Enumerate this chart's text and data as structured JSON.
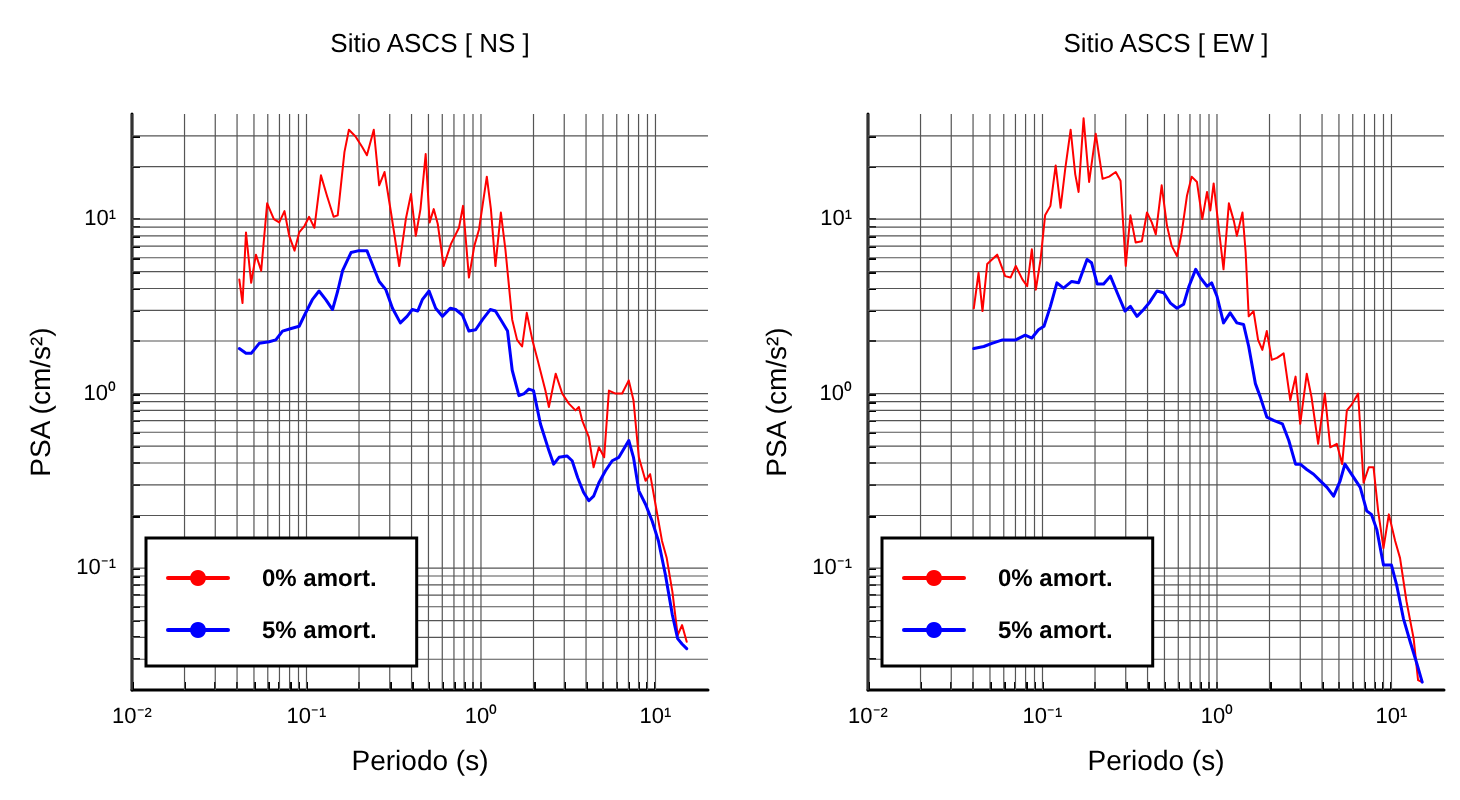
{
  "chart_data": [
    {
      "type": "line",
      "title": "Sitio ASCS [ NS ]",
      "xlabel": "Periodo (s)",
      "ylabel": "PSA (cm/s²)",
      "log": "xy",
      "grid": true,
      "legend": "bottom left",
      "xlim": [
        0.01,
        20
      ],
      "ylim": [
        0.02,
        40
      ],
      "xticks": [
        {
          "value": 0.01,
          "label": "10⁻²"
        },
        {
          "value": 0.02,
          "label": null
        },
        {
          "value": 0.03,
          "label": null
        },
        {
          "value": 0.04,
          "label": null
        },
        {
          "value": 0.05,
          "label": null
        },
        {
          "value": 0.06,
          "label": null
        },
        {
          "value": 0.07,
          "label": null
        },
        {
          "value": 0.08,
          "label": null
        },
        {
          "value": 0.09,
          "label": null
        },
        {
          "value": 0.1,
          "label": "10⁻¹"
        },
        {
          "value": 0.2,
          "label": null
        },
        {
          "value": 0.3,
          "label": null
        },
        {
          "value": 0.4,
          "label": null
        },
        {
          "value": 0.5,
          "label": null
        },
        {
          "value": 0.6,
          "label": null
        },
        {
          "value": 0.7,
          "label": null
        },
        {
          "value": 0.8,
          "label": null
        },
        {
          "value": 0.9,
          "label": null
        },
        {
          "value": 1,
          "label": "10⁰"
        },
        {
          "value": 2,
          "label": null
        },
        {
          "value": 3,
          "label": null
        },
        {
          "value": 4,
          "label": null
        },
        {
          "value": 5,
          "label": null
        },
        {
          "value": 6,
          "label": null
        },
        {
          "value": 7,
          "label": null
        },
        {
          "value": 8,
          "label": null
        },
        {
          "value": 9,
          "label": null
        },
        {
          "value": 10,
          "label": "10¹"
        }
      ],
      "yticks": [
        {
          "value": 0.03,
          "label": null
        },
        {
          "value": 0.04,
          "label": null
        },
        {
          "value": 0.05,
          "label": null
        },
        {
          "value": 0.06,
          "label": null
        },
        {
          "value": 0.07,
          "label": null
        },
        {
          "value": 0.08,
          "label": null
        },
        {
          "value": 0.09,
          "label": null
        },
        {
          "value": 0.1,
          "label": "10⁻¹"
        },
        {
          "value": 0.2,
          "label": null
        },
        {
          "value": 0.3,
          "label": null
        },
        {
          "value": 0.4,
          "label": null
        },
        {
          "value": 0.5,
          "label": null
        },
        {
          "value": 0.6,
          "label": null
        },
        {
          "value": 0.7,
          "label": null
        },
        {
          "value": 0.8,
          "label": null
        },
        {
          "value": 0.9,
          "label": null
        },
        {
          "value": 1,
          "label": "10⁰"
        },
        {
          "value": 2,
          "label": null
        },
        {
          "value": 3,
          "label": null
        },
        {
          "value": 4,
          "label": null
        },
        {
          "value": 5,
          "label": null
        },
        {
          "value": 6,
          "label": null
        },
        {
          "value": 7,
          "label": null
        },
        {
          "value": 8,
          "label": null
        },
        {
          "value": 9,
          "label": null
        },
        {
          "value": 10,
          "label": "10¹"
        },
        {
          "value": 20,
          "label": null
        },
        {
          "value": 30,
          "label": null
        }
      ],
      "series": [
        {
          "name": "0% amort.",
          "color": "#ff0000",
          "x": [
            0.0412,
            0.043,
            0.045,
            0.0482,
            0.0513,
            0.055,
            0.0595,
            0.065,
            0.0698,
            0.0748,
            0.0796,
            0.0854,
            0.0908,
            0.0975,
            0.1035,
            0.111,
            0.121,
            0.131,
            0.143,
            0.151,
            0.165,
            0.175,
            0.191,
            0.209,
            0.222,
            0.243,
            0.261,
            0.28,
            0.305,
            0.34,
            0.371,
            0.397,
            0.423,
            0.45,
            0.482,
            0.508,
            0.536,
            0.565,
            0.611,
            0.673,
            0.748,
            0.789,
            0.853,
            0.916,
            0.975,
            1.08,
            1.14,
            1.21,
            1.3,
            1.38,
            1.51,
            1.61,
            1.72,
            1.83,
            1.97,
            2.11,
            2.34,
            2.45,
            2.68,
            2.92,
            3.19,
            3.48,
            3.64,
            3.8,
            4.15,
            4.42,
            4.74,
            5.08,
            5.41,
            5.9,
            6.44,
            7.03,
            7.48,
            8.03,
            8.77,
            9.32,
            10.0,
            10.9,
            11.6,
            12.5,
            13.4,
            14.2,
            15.1
          ],
          "values": [
            4.51,
            3.3,
            8.38,
            4.31,
            6.25,
            5.06,
            12.3,
            10.0,
            9.57,
            11.1,
            8.01,
            6.59,
            8.38,
            9.15,
            10.3,
            8.91,
            17.8,
            13.6,
            10.3,
            10.5,
            24.2,
            32.5,
            29.7,
            25.8,
            23.2,
            32.5,
            15.6,
            18.6,
            10.9,
            5.38,
            10.0,
            13.9,
            8.01,
            11.4,
            23.6,
            9.57,
            11.4,
            9.4,
            5.38,
            7.21,
            8.91,
            11.9,
            4.62,
            7.02,
            8.75,
            17.5,
            11.4,
            5.38,
            10.9,
            6.71,
            2.65,
            2.03,
            1.86,
            2.9,
            2.03,
            1.56,
            1.04,
            0.838,
            1.3,
            1.0,
            0.876,
            0.801,
            0.838,
            0.702,
            0.562,
            0.378,
            0.492,
            0.431,
            1.04,
            1.0,
            1.0,
            1.19,
            0.916,
            0.431,
            0.316,
            0.345,
            0.232,
            0.143,
            0.114,
            0.0733,
            0.0412,
            0.0471,
            0.0378
          ]
        },
        {
          "name": "5% amort.",
          "color": "#0000ff",
          "x": [
            0.0412,
            0.045,
            0.0482,
            0.0536,
            0.0611,
            0.0667,
            0.0729,
            0.0817,
            0.0908,
            0.0975,
            0.108,
            0.118,
            0.129,
            0.141,
            0.151,
            0.161,
            0.18,
            0.2,
            0.222,
            0.243,
            0.261,
            0.285,
            0.311,
            0.345,
            0.377,
            0.404,
            0.434,
            0.461,
            0.504,
            0.55,
            0.601,
            0.667,
            0.716,
            0.782,
            0.853,
            0.932,
            1.02,
            1.13,
            1.21,
            1.32,
            1.42,
            1.51,
            1.65,
            1.77,
            1.88,
            2.0,
            2.19,
            2.45,
            2.61,
            2.8,
            3.11,
            3.33,
            3.58,
            3.87,
            4.15,
            4.42,
            4.74,
            5.17,
            5.65,
            6.17,
            7.03,
            7.48,
            8.03,
            8.77,
            9.57,
            10.4,
            11.4,
            12.5,
            13.4,
            14.2,
            15.1
          ],
          "values": [
            1.81,
            1.7,
            1.7,
            1.94,
            1.98,
            2.03,
            2.28,
            2.36,
            2.43,
            2.82,
            3.45,
            3.87,
            3.45,
            3.03,
            3.87,
            5.06,
            6.43,
            6.59,
            6.59,
            5.24,
            4.39,
            3.94,
            3.08,
            2.54,
            2.77,
            3.03,
            2.97,
            3.45,
            3.87,
            3.08,
            2.77,
            3.08,
            3.03,
            2.82,
            2.28,
            2.32,
            2.65,
            3.03,
            2.97,
            2.58,
            2.28,
            1.36,
            0.973,
            1.0,
            1.06,
            1.04,
            0.671,
            0.471,
            0.394,
            0.431,
            0.439,
            0.412,
            0.33,
            0.272,
            0.243,
            0.258,
            0.308,
            0.361,
            0.412,
            0.431,
            0.538,
            0.431,
            0.277,
            0.232,
            0.186,
            0.143,
            0.0916,
            0.0538,
            0.0394,
            0.0367,
            0.0345
          ]
        }
      ]
    },
    {
      "type": "line",
      "title": "Sitio ASCS [ EW ]",
      "xlabel": "Periodo (s)",
      "ylabel": "PSA (cm/s²)",
      "log": "xy",
      "grid": true,
      "legend": "bottom left",
      "xlim": [
        0.01,
        20
      ],
      "ylim": [
        0.02,
        40
      ],
      "xticks": [
        {
          "value": 0.01,
          "label": "10⁻²"
        },
        {
          "value": 0.02,
          "label": null
        },
        {
          "value": 0.03,
          "label": null
        },
        {
          "value": 0.04,
          "label": null
        },
        {
          "value": 0.05,
          "label": null
        },
        {
          "value": 0.06,
          "label": null
        },
        {
          "value": 0.07,
          "label": null
        },
        {
          "value": 0.08,
          "label": null
        },
        {
          "value": 0.09,
          "label": null
        },
        {
          "value": 0.1,
          "label": "10⁻¹"
        },
        {
          "value": 0.2,
          "label": null
        },
        {
          "value": 0.3,
          "label": null
        },
        {
          "value": 0.4,
          "label": null
        },
        {
          "value": 0.5,
          "label": null
        },
        {
          "value": 0.6,
          "label": null
        },
        {
          "value": 0.7,
          "label": null
        },
        {
          "value": 0.8,
          "label": null
        },
        {
          "value": 0.9,
          "label": null
        },
        {
          "value": 1,
          "label": "10⁰"
        },
        {
          "value": 2,
          "label": null
        },
        {
          "value": 3,
          "label": null
        },
        {
          "value": 4,
          "label": null
        },
        {
          "value": 5,
          "label": null
        },
        {
          "value": 6,
          "label": null
        },
        {
          "value": 7,
          "label": null
        },
        {
          "value": 8,
          "label": null
        },
        {
          "value": 9,
          "label": null
        },
        {
          "value": 10,
          "label": "10¹"
        }
      ],
      "yticks": [
        {
          "value": 0.03,
          "label": null
        },
        {
          "value": 0.04,
          "label": null
        },
        {
          "value": 0.05,
          "label": null
        },
        {
          "value": 0.06,
          "label": null
        },
        {
          "value": 0.07,
          "label": null
        },
        {
          "value": 0.08,
          "label": null
        },
        {
          "value": 0.09,
          "label": null
        },
        {
          "value": 0.1,
          "label": "10⁻¹"
        },
        {
          "value": 0.2,
          "label": null
        },
        {
          "value": 0.3,
          "label": null
        },
        {
          "value": 0.4,
          "label": null
        },
        {
          "value": 0.5,
          "label": null
        },
        {
          "value": 0.6,
          "label": null
        },
        {
          "value": 0.7,
          "label": null
        },
        {
          "value": 0.8,
          "label": null
        },
        {
          "value": 0.9,
          "label": null
        },
        {
          "value": 1,
          "label": "10⁰"
        },
        {
          "value": 2,
          "label": null
        },
        {
          "value": 3,
          "label": null
        },
        {
          "value": 4,
          "label": null
        },
        {
          "value": 5,
          "label": null
        },
        {
          "value": 6,
          "label": null
        },
        {
          "value": 7,
          "label": null
        },
        {
          "value": 8,
          "label": null
        },
        {
          "value": 9,
          "label": null
        },
        {
          "value": 10,
          "label": "10¹"
        },
        {
          "value": 20,
          "label": null
        },
        {
          "value": 30,
          "label": null
        }
      ],
      "series": [
        {
          "name": "0% amort.",
          "color": "#ff0000",
          "x": [
            0.0404,
            0.043,
            0.0453,
            0.0482,
            0.055,
            0.0611,
            0.0656,
            0.0703,
            0.0767,
            0.0817,
            0.0869,
            0.0916,
            0.0975,
            0.1035,
            0.111,
            0.119,
            0.127,
            0.135,
            0.145,
            0.154,
            0.161,
            0.172,
            0.185,
            0.202,
            0.221,
            0.241,
            0.263,
            0.28,
            0.3,
            0.319,
            0.342,
            0.371,
            0.397,
            0.423,
            0.446,
            0.482,
            0.517,
            0.55,
            0.59,
            0.628,
            0.673,
            0.716,
            0.768,
            0.824,
            0.877,
            0.916,
            0.957,
            1.02,
            1.09,
            1.17,
            1.25,
            1.3,
            1.4,
            1.46,
            1.52,
            1.62,
            1.72,
            1.82,
            1.93,
            2.06,
            2.21,
            2.41,
            2.63,
            2.82,
            3.0,
            3.27,
            3.48,
            3.8,
            4.15,
            4.46,
            4.86,
            5.22,
            5.55,
            5.9,
            6.44,
            6.92,
            7.41,
            7.89,
            8.39,
            9.0,
            9.66,
            10.5,
            11.2,
            12.2,
            13.4,
            14.2,
            15.0
          ],
          "values": [
            3.08,
            4.92,
            2.97,
            5.52,
            6.25,
            4.71,
            4.62,
            5.38,
            4.51,
            4.12,
            6.71,
            3.94,
            5.87,
            10.5,
            11.9,
            20.3,
            11.6,
            19.4,
            32.5,
            18.1,
            14.3,
            37.8,
            16.3,
            30.8,
            17.0,
            17.5,
            18.6,
            16.6,
            5.38,
            10.5,
            7.33,
            7.46,
            10.9,
            9.57,
            8.17,
            15.6,
            9.15,
            7.02,
            6.14,
            8.38,
            13.6,
            17.5,
            16.3,
            10.0,
            14.3,
            11.2,
            16.0,
            9.15,
            5.15,
            12.3,
            9.73,
            8.01,
            10.9,
            6.43,
            2.77,
            2.97,
            2.03,
            1.78,
            2.28,
            1.56,
            1.6,
            1.7,
            0.916,
            1.25,
            0.671,
            1.3,
            0.957,
            0.515,
            1.0,
            0.492,
            0.515,
            0.394,
            0.801,
            0.861,
            1.0,
            0.308,
            0.378,
            0.378,
            0.212,
            0.13,
            0.203,
            0.143,
            0.114,
            0.0643,
            0.0394,
            0.0228,
            0.0222
          ]
        },
        {
          "name": "5% amort.",
          "color": "#0000ff",
          "x": [
            0.0404,
            0.0461,
            0.0513,
            0.059,
            0.0703,
            0.0796,
            0.0869,
            0.0948,
            0.102,
            0.111,
            0.121,
            0.132,
            0.147,
            0.161,
            0.18,
            0.191,
            0.206,
            0.224,
            0.245,
            0.268,
            0.297,
            0.319,
            0.348,
            0.38,
            0.408,
            0.453,
            0.495,
            0.541,
            0.59,
            0.644,
            0.691,
            0.755,
            0.803,
            0.877,
            0.932,
            1.0,
            1.09,
            1.19,
            1.3,
            1.42,
            1.52,
            1.66,
            1.77,
            1.93,
            2.11,
            2.37,
            2.58,
            2.82,
            3.0,
            3.27,
            3.58,
            3.91,
            4.27,
            4.66,
            5.08,
            5.41,
            5.9,
            6.62,
            7.22,
            7.68,
            8.24,
            9.0,
            10.0,
            10.7,
            11.7,
            12.8,
            14.0,
            15.0
          ],
          "values": [
            1.81,
            1.86,
            1.94,
            2.03,
            2.03,
            2.16,
            2.08,
            2.32,
            2.43,
            3.16,
            4.31,
            4.02,
            4.39,
            4.31,
            5.87,
            5.62,
            4.24,
            4.24,
            4.71,
            3.78,
            2.97,
            3.16,
            2.77,
            3.03,
            3.3,
            3.87,
            3.78,
            3.3,
            3.08,
            3.25,
            4.12,
            5.15,
            4.62,
            4.12,
            4.31,
            3.61,
            2.54,
            2.9,
            2.54,
            2.49,
            1.86,
            1.14,
            0.957,
            0.733,
            0.702,
            0.671,
            0.538,
            0.394,
            0.394,
            0.367,
            0.345,
            0.316,
            0.29,
            0.258,
            0.316,
            0.394,
            0.345,
            0.29,
            0.212,
            0.203,
            0.166,
            0.104,
            0.104,
            0.0802,
            0.0515,
            0.0378,
            0.0282,
            0.0222
          ]
        }
      ]
    }
  ]
}
